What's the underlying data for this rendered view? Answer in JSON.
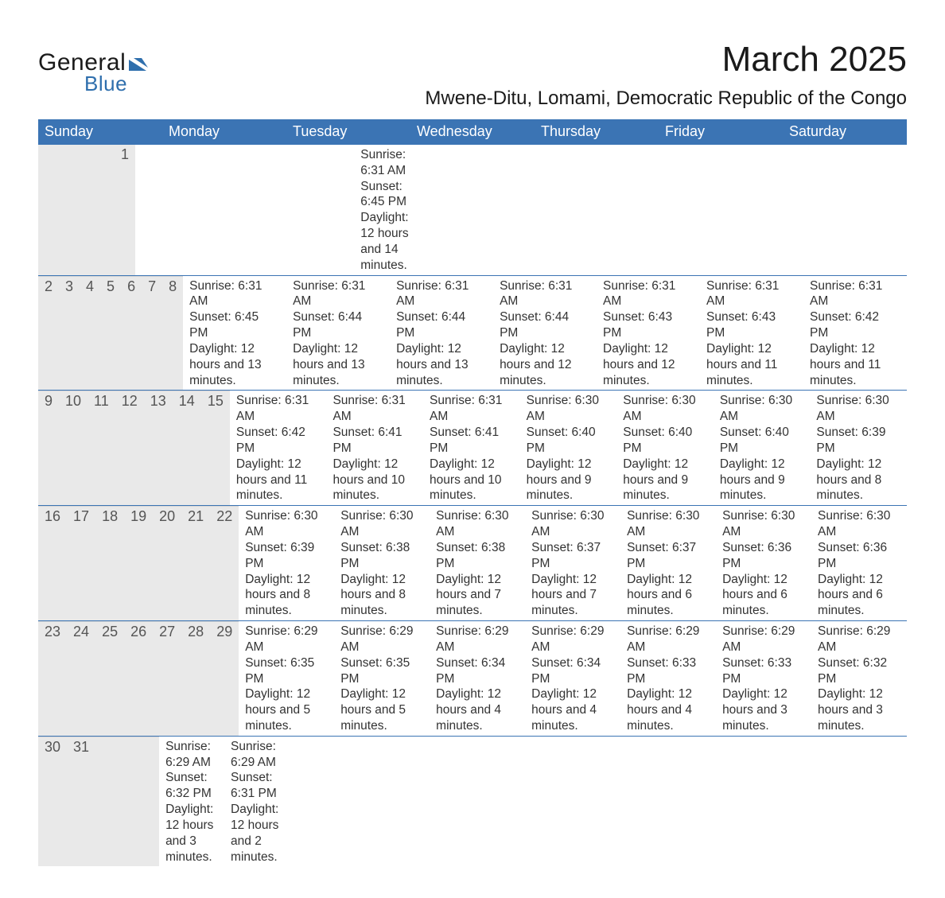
{
  "logo": {
    "text_general": "General",
    "text_blue": "Blue",
    "shape_color": "#2f6fad"
  },
  "title": "March 2025",
  "location": "Mwene-Ditu, Lomami, Democratic Republic of the Congo",
  "colors": {
    "header_bg": "#3b74b4",
    "header_text": "#ffffff",
    "daynum_bg": "#e9e9e9",
    "border": "#3b74b4",
    "body_text": "#333333",
    "page_bg": "#ffffff"
  },
  "typography": {
    "title_fontsize": 44,
    "location_fontsize": 24,
    "header_fontsize": 18,
    "daynum_fontsize": 18,
    "detail_fontsize": 15.5,
    "font_family": "Arial"
  },
  "day_names": [
    "Sunday",
    "Monday",
    "Tuesday",
    "Wednesday",
    "Thursday",
    "Friday",
    "Saturday"
  ],
  "weeks": [
    {
      "days": [
        {
          "n": "",
          "sunrise": "",
          "sunset": "",
          "daylight": ""
        },
        {
          "n": "",
          "sunrise": "",
          "sunset": "",
          "daylight": ""
        },
        {
          "n": "",
          "sunrise": "",
          "sunset": "",
          "daylight": ""
        },
        {
          "n": "",
          "sunrise": "",
          "sunset": "",
          "daylight": ""
        },
        {
          "n": "",
          "sunrise": "",
          "sunset": "",
          "daylight": ""
        },
        {
          "n": "",
          "sunrise": "",
          "sunset": "",
          "daylight": ""
        },
        {
          "n": "1",
          "sunrise": "Sunrise: 6:31 AM",
          "sunset": "Sunset: 6:45 PM",
          "daylight": "Daylight: 12 hours and 14 minutes."
        }
      ]
    },
    {
      "days": [
        {
          "n": "2",
          "sunrise": "Sunrise: 6:31 AM",
          "sunset": "Sunset: 6:45 PM",
          "daylight": "Daylight: 12 hours and 13 minutes."
        },
        {
          "n": "3",
          "sunrise": "Sunrise: 6:31 AM",
          "sunset": "Sunset: 6:44 PM",
          "daylight": "Daylight: 12 hours and 13 minutes."
        },
        {
          "n": "4",
          "sunrise": "Sunrise: 6:31 AM",
          "sunset": "Sunset: 6:44 PM",
          "daylight": "Daylight: 12 hours and 13 minutes."
        },
        {
          "n": "5",
          "sunrise": "Sunrise: 6:31 AM",
          "sunset": "Sunset: 6:44 PM",
          "daylight": "Daylight: 12 hours and 12 minutes."
        },
        {
          "n": "6",
          "sunrise": "Sunrise: 6:31 AM",
          "sunset": "Sunset: 6:43 PM",
          "daylight": "Daylight: 12 hours and 12 minutes."
        },
        {
          "n": "7",
          "sunrise": "Sunrise: 6:31 AM",
          "sunset": "Sunset: 6:43 PM",
          "daylight": "Daylight: 12 hours and 11 minutes."
        },
        {
          "n": "8",
          "sunrise": "Sunrise: 6:31 AM",
          "sunset": "Sunset: 6:42 PM",
          "daylight": "Daylight: 12 hours and 11 minutes."
        }
      ]
    },
    {
      "days": [
        {
          "n": "9",
          "sunrise": "Sunrise: 6:31 AM",
          "sunset": "Sunset: 6:42 PM",
          "daylight": "Daylight: 12 hours and 11 minutes."
        },
        {
          "n": "10",
          "sunrise": "Sunrise: 6:31 AM",
          "sunset": "Sunset: 6:41 PM",
          "daylight": "Daylight: 12 hours and 10 minutes."
        },
        {
          "n": "11",
          "sunrise": "Sunrise: 6:31 AM",
          "sunset": "Sunset: 6:41 PM",
          "daylight": "Daylight: 12 hours and 10 minutes."
        },
        {
          "n": "12",
          "sunrise": "Sunrise: 6:30 AM",
          "sunset": "Sunset: 6:40 PM",
          "daylight": "Daylight: 12 hours and 9 minutes."
        },
        {
          "n": "13",
          "sunrise": "Sunrise: 6:30 AM",
          "sunset": "Sunset: 6:40 PM",
          "daylight": "Daylight: 12 hours and 9 minutes."
        },
        {
          "n": "14",
          "sunrise": "Sunrise: 6:30 AM",
          "sunset": "Sunset: 6:40 PM",
          "daylight": "Daylight: 12 hours and 9 minutes."
        },
        {
          "n": "15",
          "sunrise": "Sunrise: 6:30 AM",
          "sunset": "Sunset: 6:39 PM",
          "daylight": "Daylight: 12 hours and 8 minutes."
        }
      ]
    },
    {
      "days": [
        {
          "n": "16",
          "sunrise": "Sunrise: 6:30 AM",
          "sunset": "Sunset: 6:39 PM",
          "daylight": "Daylight: 12 hours and 8 minutes."
        },
        {
          "n": "17",
          "sunrise": "Sunrise: 6:30 AM",
          "sunset": "Sunset: 6:38 PM",
          "daylight": "Daylight: 12 hours and 8 minutes."
        },
        {
          "n": "18",
          "sunrise": "Sunrise: 6:30 AM",
          "sunset": "Sunset: 6:38 PM",
          "daylight": "Daylight: 12 hours and 7 minutes."
        },
        {
          "n": "19",
          "sunrise": "Sunrise: 6:30 AM",
          "sunset": "Sunset: 6:37 PM",
          "daylight": "Daylight: 12 hours and 7 minutes."
        },
        {
          "n": "20",
          "sunrise": "Sunrise: 6:30 AM",
          "sunset": "Sunset: 6:37 PM",
          "daylight": "Daylight: 12 hours and 6 minutes."
        },
        {
          "n": "21",
          "sunrise": "Sunrise: 6:30 AM",
          "sunset": "Sunset: 6:36 PM",
          "daylight": "Daylight: 12 hours and 6 minutes."
        },
        {
          "n": "22",
          "sunrise": "Sunrise: 6:30 AM",
          "sunset": "Sunset: 6:36 PM",
          "daylight": "Daylight: 12 hours and 6 minutes."
        }
      ]
    },
    {
      "days": [
        {
          "n": "23",
          "sunrise": "Sunrise: 6:29 AM",
          "sunset": "Sunset: 6:35 PM",
          "daylight": "Daylight: 12 hours and 5 minutes."
        },
        {
          "n": "24",
          "sunrise": "Sunrise: 6:29 AM",
          "sunset": "Sunset: 6:35 PM",
          "daylight": "Daylight: 12 hours and 5 minutes."
        },
        {
          "n": "25",
          "sunrise": "Sunrise: 6:29 AM",
          "sunset": "Sunset: 6:34 PM",
          "daylight": "Daylight: 12 hours and 4 minutes."
        },
        {
          "n": "26",
          "sunrise": "Sunrise: 6:29 AM",
          "sunset": "Sunset: 6:34 PM",
          "daylight": "Daylight: 12 hours and 4 minutes."
        },
        {
          "n": "27",
          "sunrise": "Sunrise: 6:29 AM",
          "sunset": "Sunset: 6:33 PM",
          "daylight": "Daylight: 12 hours and 4 minutes."
        },
        {
          "n": "28",
          "sunrise": "Sunrise: 6:29 AM",
          "sunset": "Sunset: 6:33 PM",
          "daylight": "Daylight: 12 hours and 3 minutes."
        },
        {
          "n": "29",
          "sunrise": "Sunrise: 6:29 AM",
          "sunset": "Sunset: 6:32 PM",
          "daylight": "Daylight: 12 hours and 3 minutes."
        }
      ]
    },
    {
      "days": [
        {
          "n": "30",
          "sunrise": "Sunrise: 6:29 AM",
          "sunset": "Sunset: 6:32 PM",
          "daylight": "Daylight: 12 hours and 3 minutes."
        },
        {
          "n": "31",
          "sunrise": "Sunrise: 6:29 AM",
          "sunset": "Sunset: 6:31 PM",
          "daylight": "Daylight: 12 hours and 2 minutes."
        },
        {
          "n": "",
          "sunrise": "",
          "sunset": "",
          "daylight": ""
        },
        {
          "n": "",
          "sunrise": "",
          "sunset": "",
          "daylight": ""
        },
        {
          "n": "",
          "sunrise": "",
          "sunset": "",
          "daylight": ""
        },
        {
          "n": "",
          "sunrise": "",
          "sunset": "",
          "daylight": ""
        },
        {
          "n": "",
          "sunrise": "",
          "sunset": "",
          "daylight": ""
        }
      ]
    }
  ]
}
